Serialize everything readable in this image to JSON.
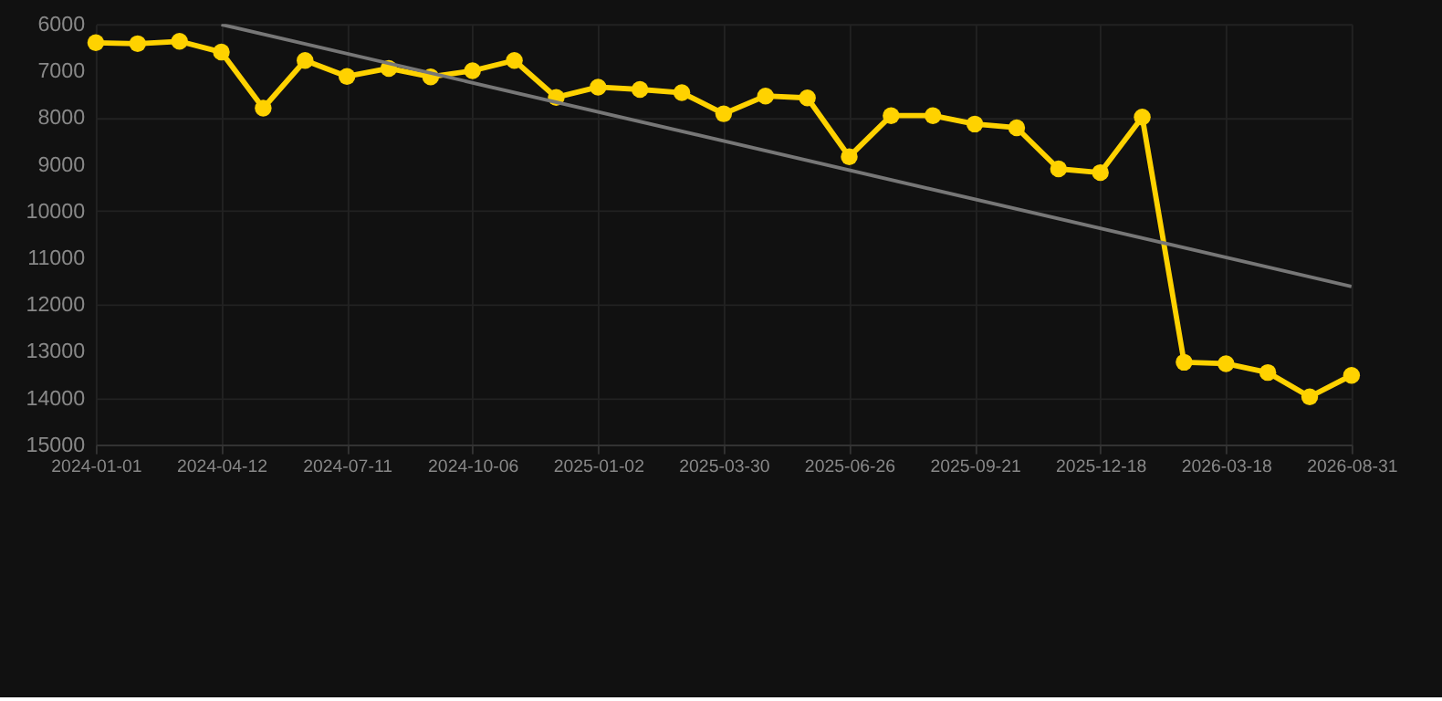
{
  "chart_data": {
    "type": "line",
    "categories": [
      "2024-01-01",
      null,
      null,
      "2024-04-12",
      null,
      null,
      "2024-07-11",
      null,
      null,
      "2024-10-06",
      null,
      null,
      "2025-01-02",
      null,
      null,
      "2025-03-30",
      null,
      null,
      "2025-06-26",
      null,
      null,
      "2025-09-21",
      null,
      null,
      "2025-12-18",
      null,
      null,
      "2026-03-18",
      null,
      null,
      "2026-08-31"
    ],
    "series": [
      {
        "color": "#ffd200",
        "marker": "circle",
        "values": [
          6400,
          6420,
          6370,
          6600,
          7800,
          6780,
          7120,
          6950,
          7130,
          7000,
          6780,
          7570,
          7350,
          7400,
          7470,
          7920,
          7540,
          7580,
          8840,
          7960,
          7960,
          8140,
          8220,
          9100,
          9180,
          7990,
          13240,
          13270,
          13460,
          13980,
          13520
        ]
      },
      {
        "type": "line",
        "color": "#777777",
        "marker": "none",
        "values": [
          null,
          null,
          null,
          6010,
          null,
          null,
          null,
          null,
          null,
          null,
          null,
          null,
          null,
          null,
          null,
          null,
          null,
          null,
          null,
          null,
          null,
          null,
          null,
          null,
          null,
          null,
          null,
          null,
          null,
          null,
          11620
        ]
      }
    ],
    "ylim": [
      15000,
      6000
    ],
    "yticks": [
      6000,
      7000,
      8000,
      9000,
      10000,
      11000,
      12000,
      13000,
      14000,
      15000
    ],
    "grid": true
  }
}
